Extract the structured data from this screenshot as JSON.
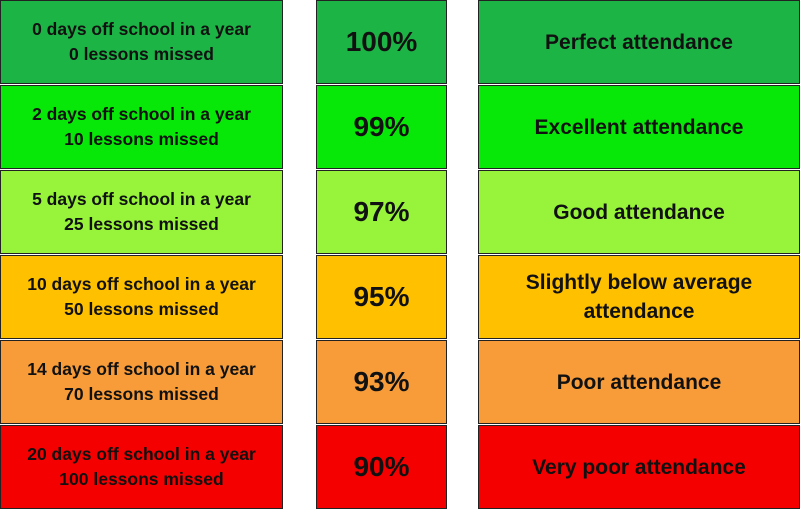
{
  "rows": [
    {
      "days": "0 days off school in a year",
      "lessons": "0 lessons missed",
      "percent": "100%",
      "label": "Perfect attendance"
    },
    {
      "days": "2 days off school in a year",
      "lessons": "10 lessons missed",
      "percent": "99%",
      "label": "Excellent attendance"
    },
    {
      "days": "5 days off school in a year",
      "lessons": "25 lessons missed",
      "percent": "97%",
      "label": "Good attendance"
    },
    {
      "days": "10 days off school in a year",
      "lessons": "50 lessons missed",
      "percent": "95%",
      "label": "Slightly below average attendance"
    },
    {
      "days": "14 days off school in a year",
      "lessons": "70 lessons missed",
      "percent": "93%",
      "label": "Poor attendance"
    },
    {
      "days": "20 days off school in a year",
      "lessons": "100 lessons missed",
      "percent": "90%",
      "label": "Very poor attendance"
    }
  ]
}
